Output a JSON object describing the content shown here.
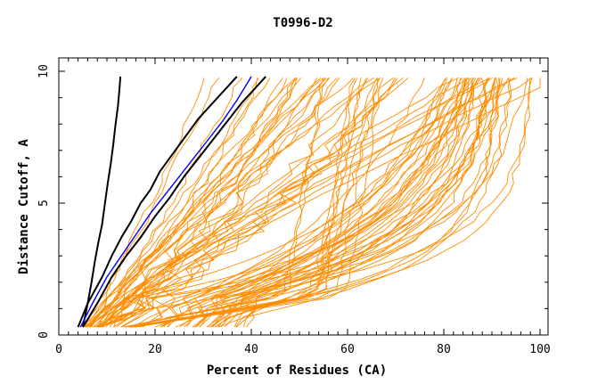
{
  "chart_data": {
    "type": "line",
    "title": "T0996-D2",
    "xlabel": "Percent of Residues (CA)",
    "ylabel": "Distance Cutoff, A",
    "xlim": [
      0,
      100
    ],
    "ylim": [
      0,
      10
    ],
    "x_ticks": [
      "0",
      "20",
      "40",
      "60",
      "80",
      "100"
    ],
    "y_ticks": [
      "0",
      "5",
      "10"
    ],
    "grid": false,
    "colors": {
      "models": "#ff8c00",
      "highlight_black": "#000000",
      "highlight_blue": "#0000ff"
    },
    "series": [
      {
        "color": "#000000",
        "x": [
          5,
          6,
          6.8,
          7.5,
          8.2,
          9,
          9.6,
          10.2,
          10.8,
          11.3,
          11.8,
          12.3,
          12.6,
          12.8
        ],
        "y": [
          0.3,
          1.2,
          2,
          2.8,
          3.5,
          4.2,
          5,
          5.8,
          6.5,
          7.2,
          8,
          8.7,
          9.3,
          9.8
        ]
      },
      {
        "color": "#000000",
        "x": [
          4,
          6,
          9,
          11,
          13,
          15,
          17,
          19,
          21,
          23,
          25,
          27,
          29,
          31,
          33,
          35,
          37
        ],
        "y": [
          0.3,
          1.2,
          2.2,
          3,
          3.7,
          4.3,
          5,
          5.5,
          6.2,
          6.7,
          7.2,
          7.7,
          8.2,
          8.6,
          9,
          9.4,
          9.8
        ]
      },
      {
        "color": "#000000",
        "x": [
          5,
          8,
          11,
          14,
          17,
          20,
          23,
          26,
          29,
          32,
          35,
          38,
          41,
          43
        ],
        "y": [
          0.3,
          1.2,
          2.2,
          3,
          3.7,
          4.5,
          5.2,
          6,
          6.7,
          7.4,
          8.1,
          8.8,
          9.4,
          9.8
        ]
      },
      {
        "color": "#0000ff",
        "x": [
          4.5,
          7,
          10,
          13,
          16,
          19,
          22,
          25,
          28,
          31,
          34,
          37,
          40
        ],
        "y": [
          0.3,
          1.2,
          2.2,
          3,
          3.8,
          4.6,
          5.3,
          6,
          6.7,
          7.4,
          8.1,
          8.9,
          9.8
        ]
      }
    ]
  }
}
